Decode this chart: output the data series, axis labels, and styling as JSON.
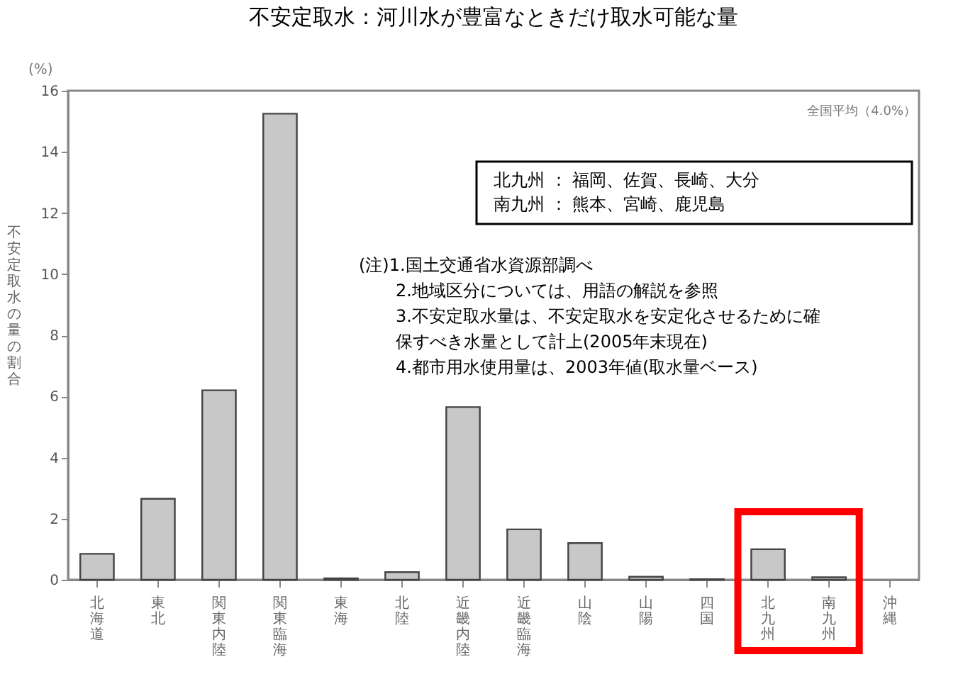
{
  "chart_data": {
    "type": "bar",
    "title": "不安定取水：河川水が豊富なときだけ取水可能な量",
    "ylabel": "不安定取水の量の割合",
    "categories": [
      "北海道",
      "東北",
      "関東内陸",
      "関東臨海",
      "東海",
      "北陸",
      "近畿内陸",
      "近畿臨海",
      "山陰",
      "山陽",
      "四国",
      "北九州",
      "南九州",
      "沖縄"
    ],
    "values": [
      0.85,
      2.65,
      6.2,
      15.25,
      0.05,
      0.25,
      5.65,
      1.65,
      1.2,
      0.1,
      0.02,
      1.0,
      0.08,
      null
    ],
    "color": "#c8c8c8",
    "ylim": [
      0,
      16
    ],
    "yticks": [
      0,
      2,
      4,
      6,
      8,
      10,
      12,
      14,
      16
    ],
    "grid": false,
    "annotations": [
      "(%)",
      "全国平均（4.0%）",
      "北九州 ： 福岡、佐賀、長崎、大分",
      "南九州 ： 熊本、宮崎、鹿児島",
      "(注)1.国土交通省水資源部調べ",
      "2.地域区分については、用語の解説を参照",
      "3.不安定取水量は、不安定取水を安定化させるために確保すべき水量として計上(2005年末現在)",
      "4.都市用水使用量は、2003年値(取水量ベース)"
    ]
  }
}
